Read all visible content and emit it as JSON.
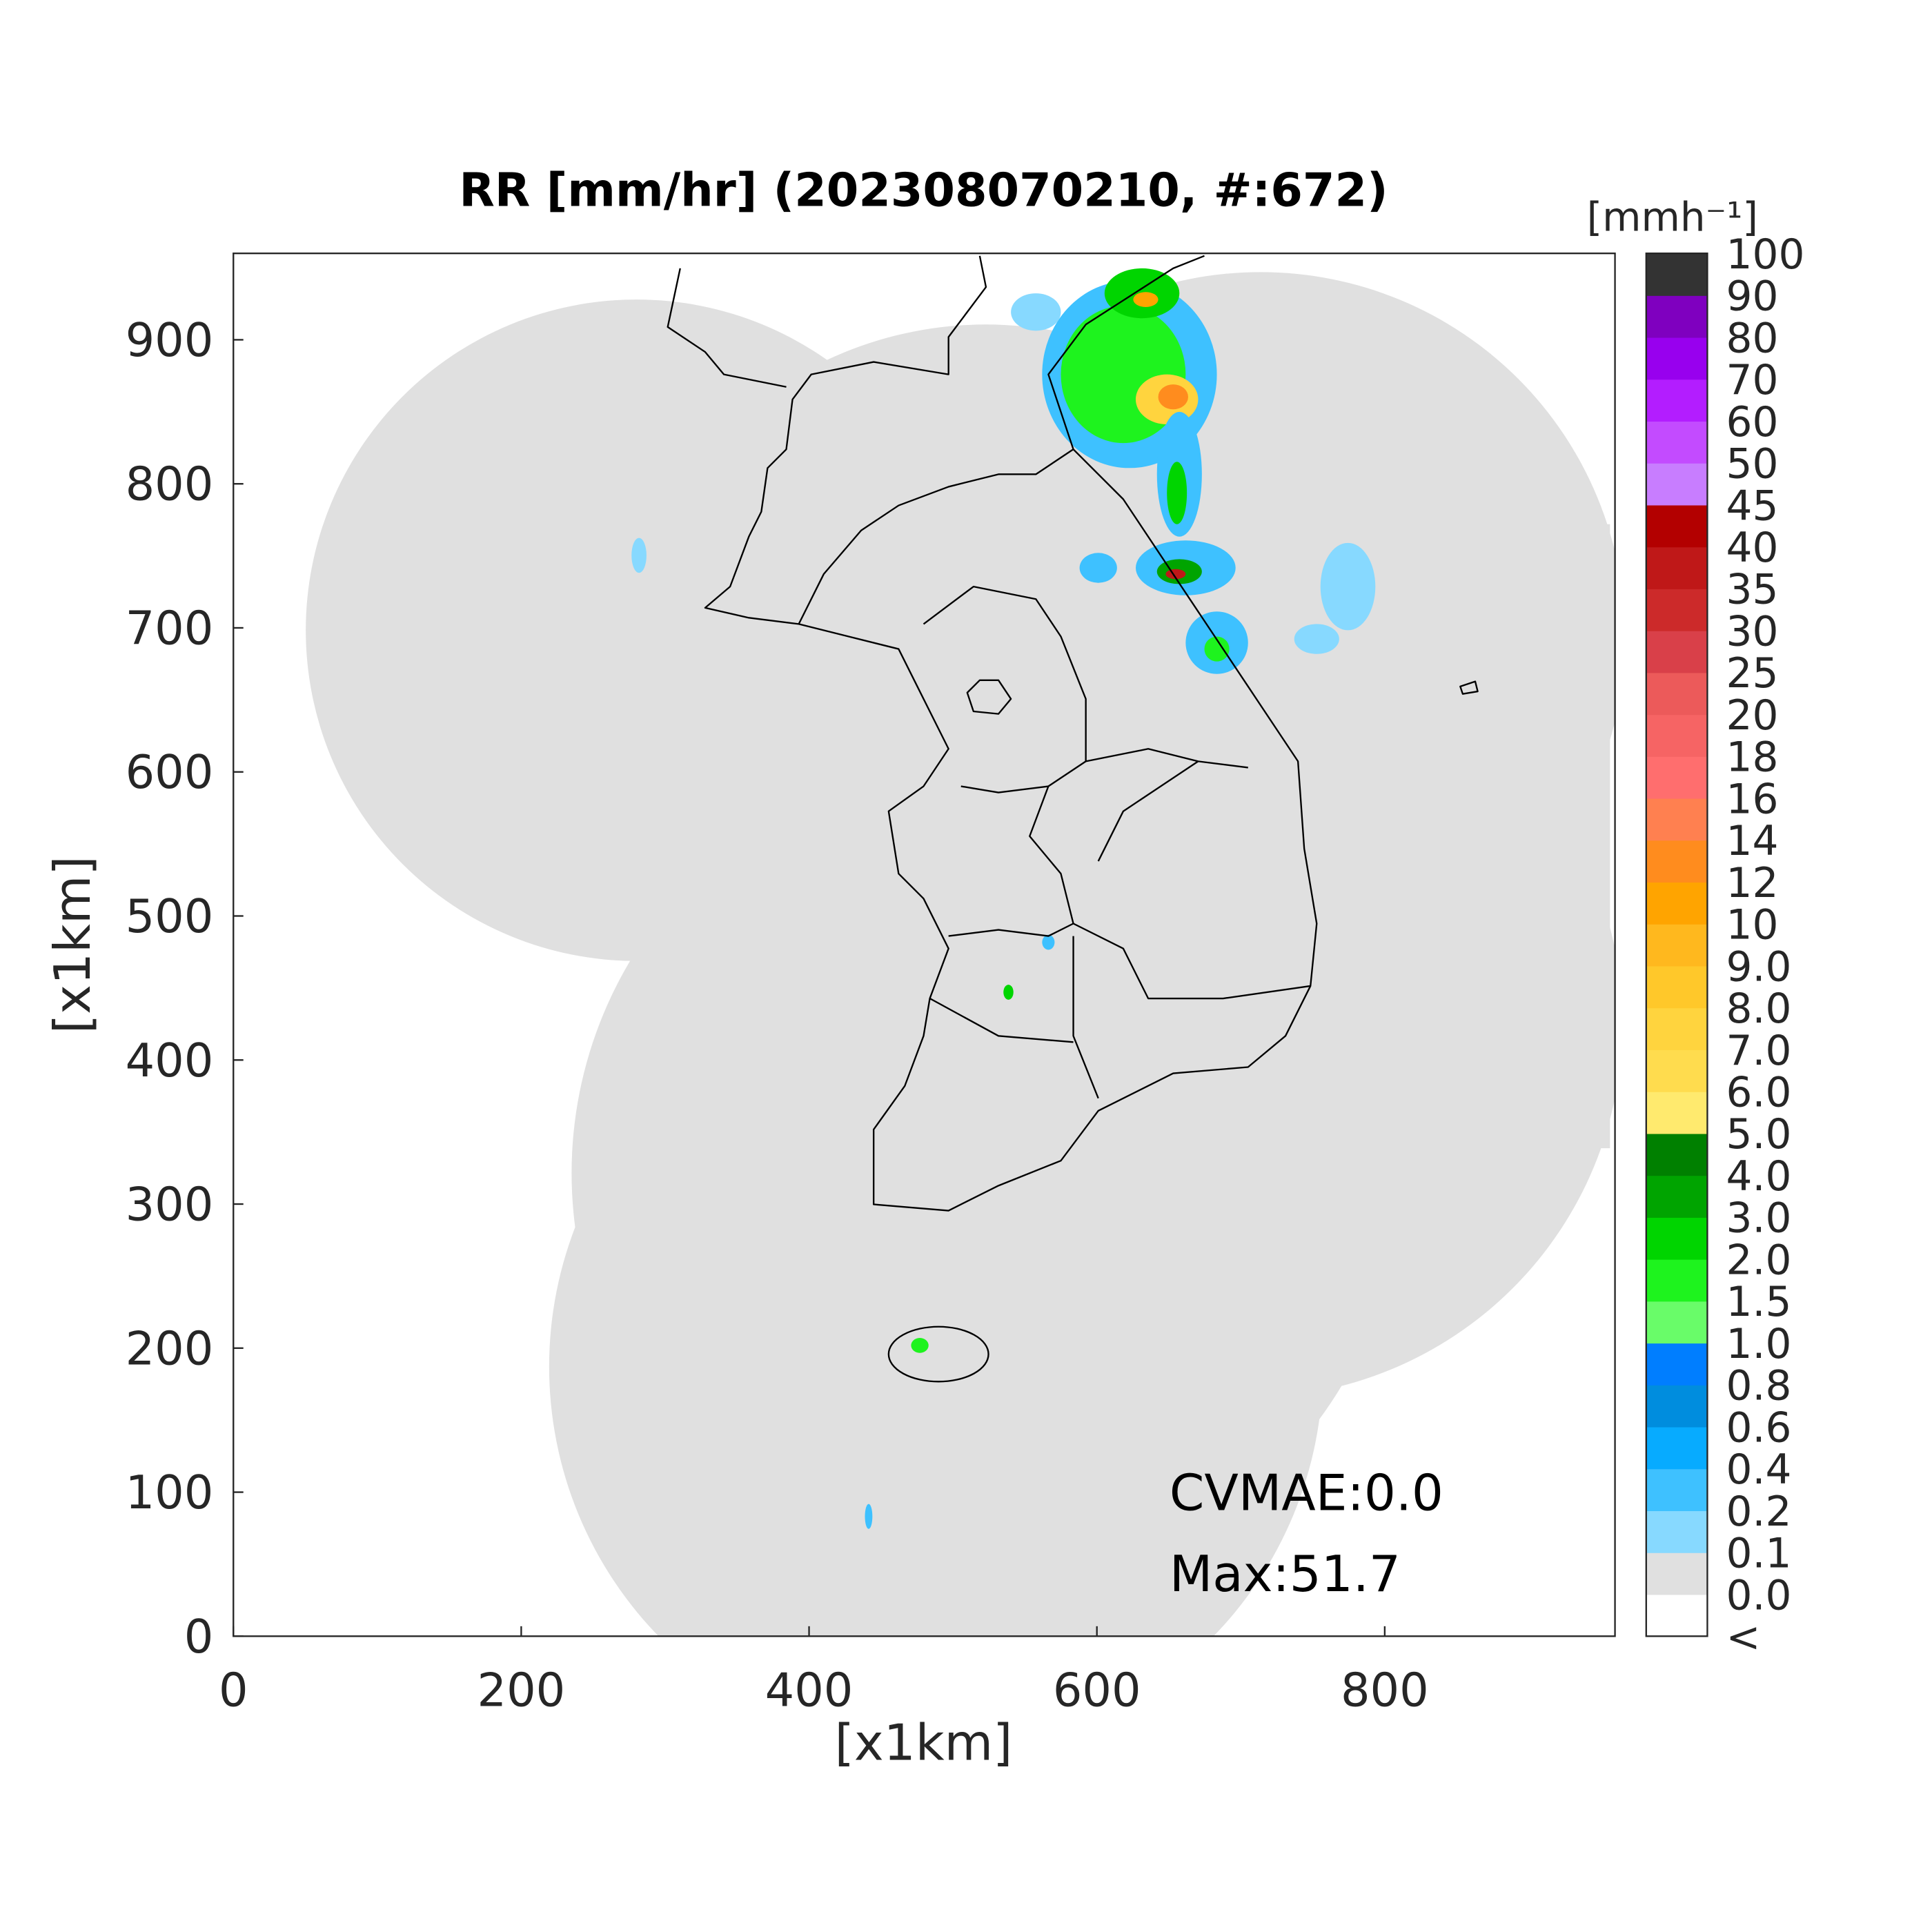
{
  "chart_data": {
    "type": "map",
    "title": "RR [mm/hr] (202308070210, #:672)",
    "xlabel": "[x1km]",
    "ylabel": "[x1km]",
    "xlim": [
      0,
      960
    ],
    "ylim": [
      0,
      960
    ],
    "xticks": [
      0,
      200,
      400,
      600,
      800
    ],
    "yticks": [
      0,
      100,
      200,
      300,
      400,
      500,
      600,
      700,
      800,
      900
    ],
    "annotations": [
      "CVMAE:0.0",
      "Max:51.7"
    ],
    "colorbar": {
      "title": "[mmh⁻¹]",
      "labels": [
        "<",
        "0.0",
        "0.1",
        "0.2",
        "0.4",
        "0.6",
        "0.8",
        "1.0",
        "1.5",
        "2.0",
        "3.0",
        "4.0",
        "5.0",
        "6.0",
        "7.0",
        "8.0",
        "9.0",
        "10",
        "12",
        "14",
        "16",
        "18",
        "20",
        "25",
        "30",
        "35",
        "40",
        "45",
        "50",
        "60",
        "70",
        "80",
        "90",
        "100"
      ],
      "colors": [
        "#ffffff",
        "#e0e0e0",
        "#87d9ff",
        "#3ec1ff",
        "#07abff",
        "#008dde",
        "#007eff",
        "#69fc69",
        "#1ef31e",
        "#00d500",
        "#00a400",
        "#008000",
        "#ffea6e",
        "#ffdc4e",
        "#ffd43e",
        "#ffc82a",
        "#ffb81e",
        "#ffa400",
        "#ff8c1e",
        "#ff8050",
        "#ff6e6e",
        "#f66464",
        "#ec5a5a",
        "#d94049",
        "#cc2a2a",
        "#bf1818",
        "#b30000",
        "#c87dff",
        "#c34bff",
        "#b31dff",
        "#9800ee",
        "#7f00bf",
        "#333333"
      ]
    }
  }
}
